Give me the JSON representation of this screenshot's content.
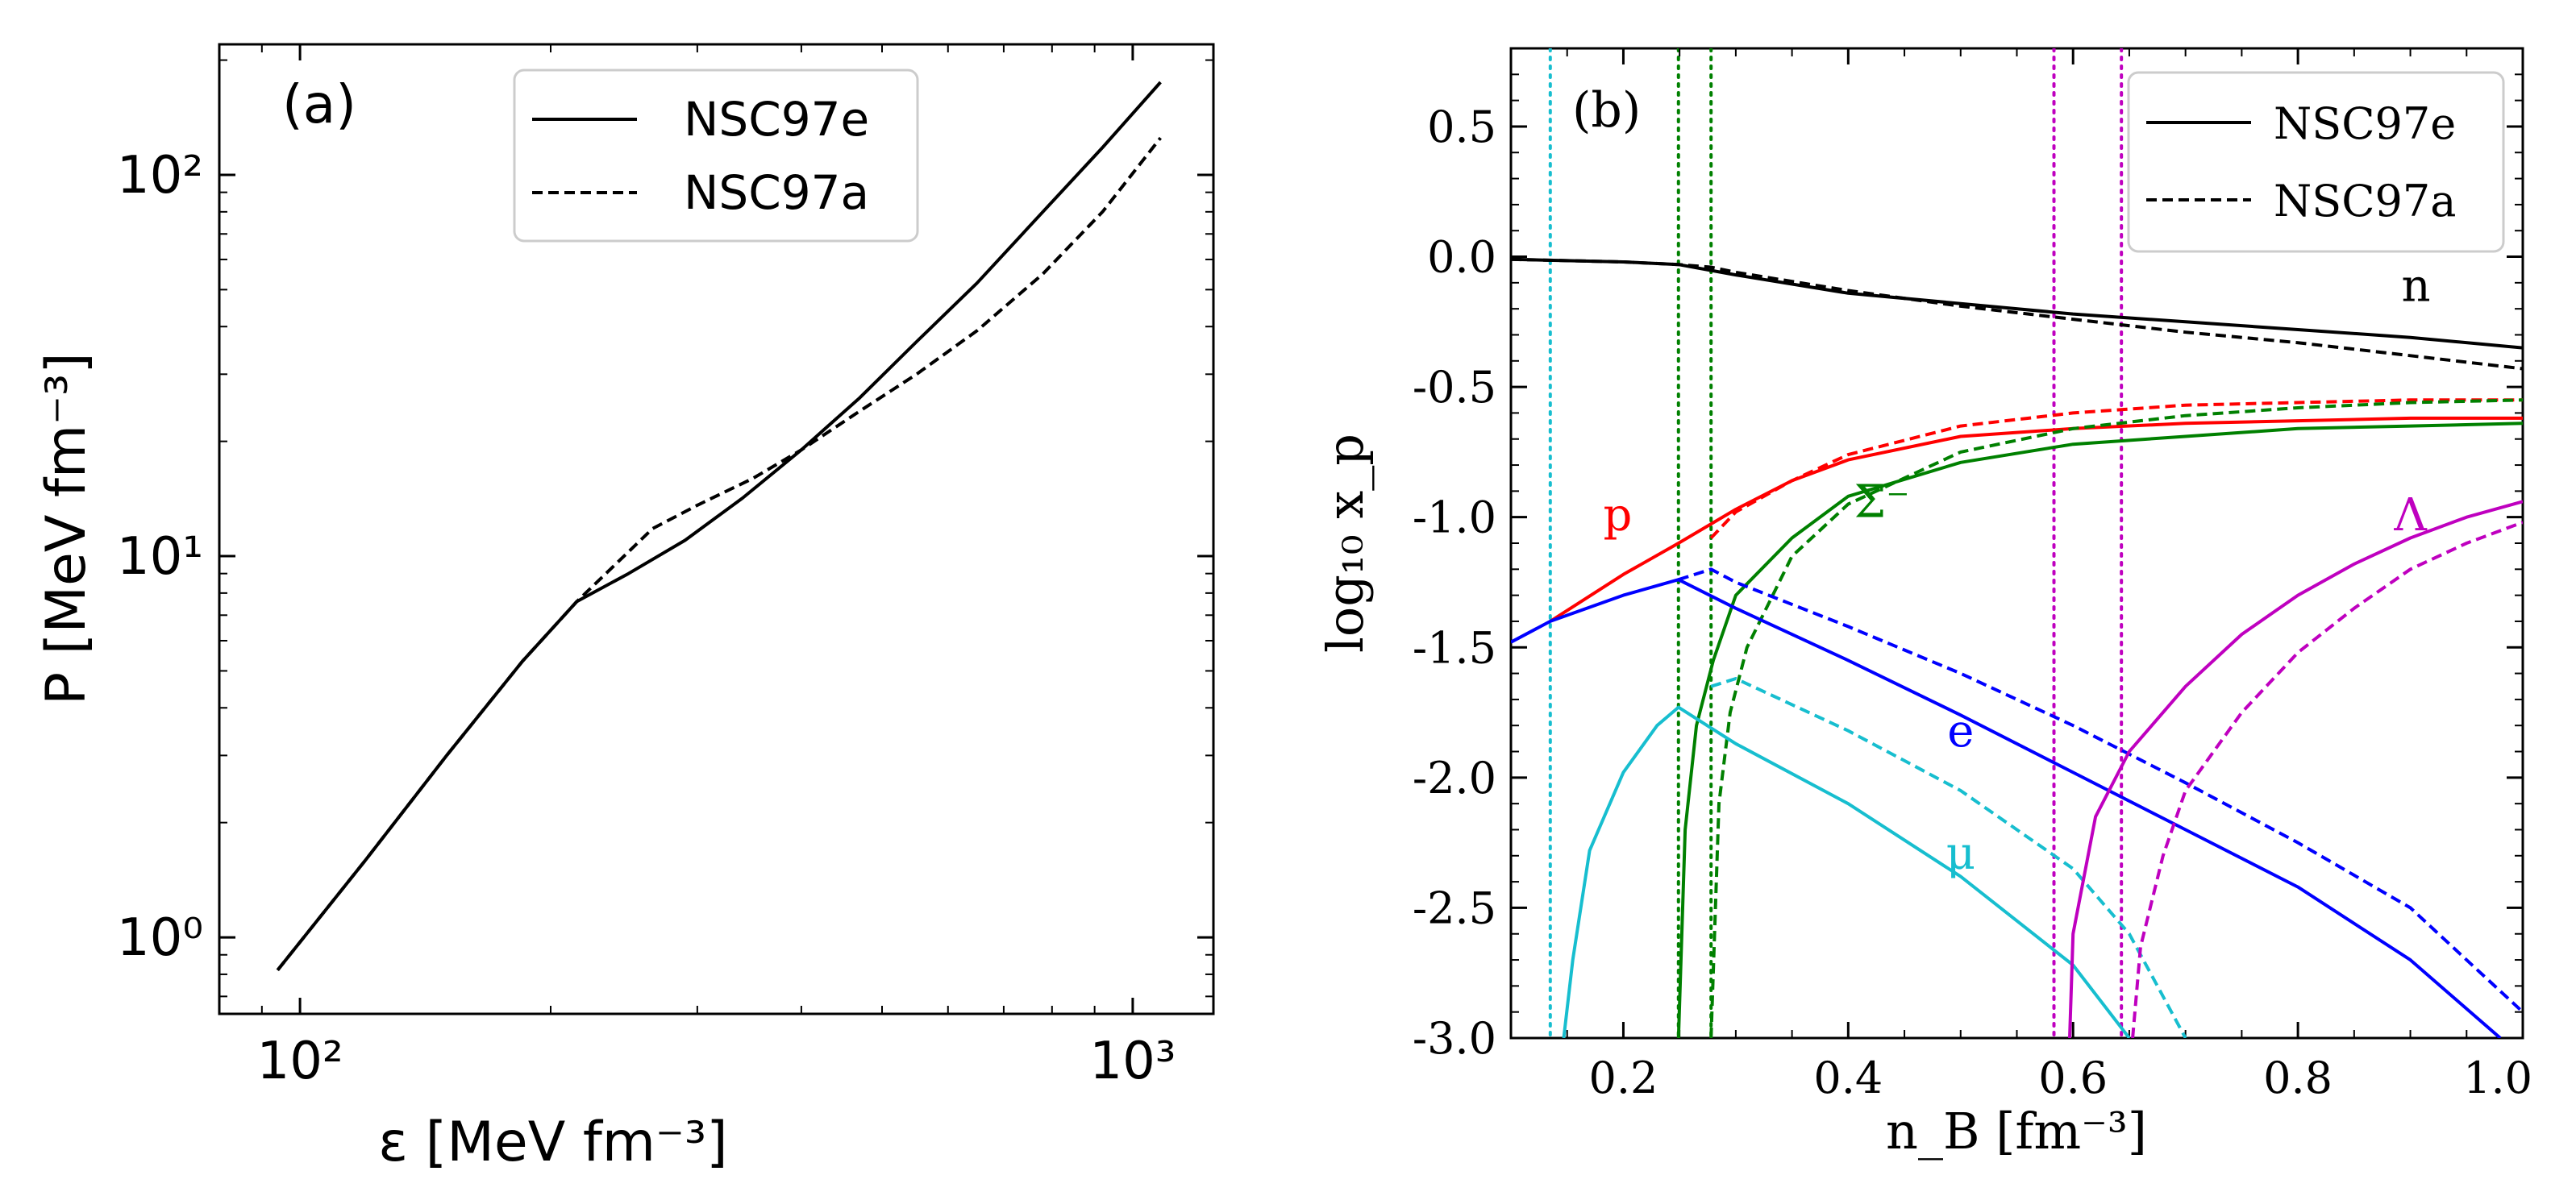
{
  "chart_data": [
    {
      "type": "line",
      "panel": "(a)",
      "xscale": "log",
      "yscale": "log",
      "xlabel": "ε [MeV fm⁻³]",
      "ylabel": "P [MeV fm⁻³]",
      "xlim": [
        80,
        1250
      ],
      "ylim": [
        0.63,
        220
      ],
      "xticks": [
        {
          "value": 100,
          "label": "10²"
        },
        {
          "value": 1000,
          "label": "10³"
        }
      ],
      "yticks": [
        {
          "value": 1,
          "label": "10⁰"
        },
        {
          "value": 10,
          "label": "10¹"
        },
        {
          "value": 100,
          "label": "10²"
        }
      ],
      "legend": {
        "position": "top-center",
        "entries": [
          "NSC97e",
          "NSC97a"
        ]
      },
      "series": [
        {
          "name": "NSC97e",
          "style": "solid",
          "color": "#000000",
          "x": [
            94,
            120,
            150,
            185,
            215,
            248,
            290,
            340,
            400,
            470,
            550,
            650,
            780,
            920,
            1080
          ],
          "y": [
            0.82,
            1.6,
            3.0,
            5.3,
            7.6,
            9.0,
            11.0,
            14.2,
            19.0,
            26.0,
            36.5,
            52.0,
            80.0,
            118.0,
            175.0
          ]
        },
        {
          "name": "NSC97a",
          "style": "dashed",
          "color": "#000000",
          "x": [
            94,
            120,
            150,
            185,
            215,
            245,
            265,
            300,
            350,
            400,
            470,
            550,
            650,
            780,
            920,
            1080
          ],
          "y": [
            0.82,
            1.6,
            3.0,
            5.3,
            7.6,
            10.0,
            11.8,
            13.6,
            16.0,
            19.0,
            24.0,
            30.0,
            39.0,
            55.0,
            80.0,
            125.0
          ]
        }
      ],
      "annotation": "(a)"
    },
    {
      "type": "line",
      "panel": "(b)",
      "xlabel": "n_B [fm⁻³]",
      "ylabel": "log₁₀ x_p",
      "xlim": [
        0.1,
        1.0
      ],
      "ylim": [
        -3.0,
        0.8
      ],
      "xticks": [
        {
          "value": 0.2,
          "label": "0.2"
        },
        {
          "value": 0.4,
          "label": "0.4"
        },
        {
          "value": 0.6,
          "label": "0.6"
        },
        {
          "value": 0.8,
          "label": "0.8"
        },
        {
          "value": 1.0,
          "label": "1.0"
        }
      ],
      "yticks": [
        {
          "value": 0.5,
          "label": "0.5"
        },
        {
          "value": 0.0,
          "label": "0.0"
        },
        {
          "value": -0.5,
          "label": "-0.5"
        },
        {
          "value": -1.0,
          "label": "-1.0"
        },
        {
          "value": -1.5,
          "label": "-1.5"
        },
        {
          "value": -2.0,
          "label": "-2.0"
        },
        {
          "value": -2.5,
          "label": "-2.5"
        },
        {
          "value": -3.0,
          "label": "-3.0"
        }
      ],
      "legend": {
        "position": "top-right",
        "entries": [
          "NSC97e",
          "NSC97a"
        ]
      },
      "annotation": "(b)",
      "vlines": [
        {
          "x": 0.135,
          "color": "#17becf"
        },
        {
          "x": 0.249,
          "color": "#008000"
        },
        {
          "x": 0.278,
          "color": "#008000"
        },
        {
          "x": 0.583,
          "color": "#bf00bf"
        },
        {
          "x": 0.643,
          "color": "#bf00bf"
        }
      ],
      "series": [
        {
          "name": "n NSC97e",
          "label": "n",
          "style": "solid",
          "color": "#000000",
          "x": [
            0.1,
            0.2,
            0.249,
            0.3,
            0.4,
            0.5,
            0.6,
            0.7,
            0.8,
            0.9,
            1.0
          ],
          "y": [
            -0.01,
            -0.02,
            -0.03,
            -0.07,
            -0.14,
            -0.18,
            -0.22,
            -0.25,
            -0.28,
            -0.31,
            -0.35
          ]
        },
        {
          "name": "n NSC97a",
          "label": "n",
          "style": "dashed",
          "color": "#000000",
          "x": [
            0.1,
            0.2,
            0.249,
            0.278,
            0.3,
            0.4,
            0.5,
            0.6,
            0.7,
            0.8,
            0.9,
            1.0
          ],
          "y": [
            -0.01,
            -0.02,
            -0.03,
            -0.04,
            -0.06,
            -0.13,
            -0.19,
            -0.24,
            -0.29,
            -0.33,
            -0.38,
            -0.43
          ]
        },
        {
          "name": "p NSC97e",
          "label": "p",
          "style": "solid",
          "color": "#ff0000",
          "x": [
            0.135,
            0.2,
            0.249,
            0.3,
            0.35,
            0.4,
            0.5,
            0.6,
            0.7,
            0.8,
            0.9,
            1.0
          ],
          "y": [
            -1.4,
            -1.22,
            -1.1,
            -0.97,
            -0.86,
            -0.78,
            -0.69,
            -0.66,
            -0.64,
            -0.63,
            -0.62,
            -0.62
          ]
        },
        {
          "name": "p NSC97a",
          "label": "p",
          "style": "dashed",
          "color": "#ff0000",
          "x": [
            0.278,
            0.3,
            0.35,
            0.4,
            0.5,
            0.6,
            0.7,
            0.8,
            0.9,
            1.0
          ],
          "y": [
            -1.08,
            -0.98,
            -0.86,
            -0.76,
            -0.65,
            -0.6,
            -0.57,
            -0.56,
            -0.55,
            -0.55
          ]
        },
        {
          "name": "Σ⁻ NSC97e",
          "label": "Σ⁻",
          "style": "solid",
          "color": "#008000",
          "x": [
            0.249,
            0.255,
            0.265,
            0.28,
            0.3,
            0.35,
            0.4,
            0.5,
            0.6,
            0.7,
            0.8,
            0.9,
            1.0
          ],
          "y": [
            -3.0,
            -2.2,
            -1.8,
            -1.55,
            -1.3,
            -1.08,
            -0.92,
            -0.79,
            -0.72,
            -0.69,
            -0.66,
            -0.65,
            -0.64
          ]
        },
        {
          "name": "Σ⁻ NSC97a",
          "label": "Σ⁻",
          "style": "dashed",
          "color": "#008000",
          "x": [
            0.278,
            0.285,
            0.295,
            0.31,
            0.35,
            0.4,
            0.5,
            0.6,
            0.7,
            0.8,
            0.9,
            1.0
          ],
          "y": [
            -3.0,
            -2.1,
            -1.75,
            -1.5,
            -1.15,
            -0.95,
            -0.75,
            -0.66,
            -0.61,
            -0.58,
            -0.56,
            -0.55
          ]
        },
        {
          "name": "e NSC97e",
          "label": "e",
          "style": "solid",
          "color": "#0000ff",
          "x": [
            0.1,
            0.135,
            0.2,
            0.249,
            0.3,
            0.4,
            0.5,
            0.6,
            0.7,
            0.8,
            0.9,
            0.98
          ],
          "y": [
            -1.48,
            -1.4,
            -1.3,
            -1.24,
            -1.35,
            -1.55,
            -1.76,
            -1.98,
            -2.2,
            -2.42,
            -2.7,
            -3.0
          ]
        },
        {
          "name": "e NSC97a",
          "label": "e",
          "style": "dashed",
          "color": "#0000ff",
          "x": [
            0.249,
            0.278,
            0.3,
            0.4,
            0.5,
            0.6,
            0.7,
            0.8,
            0.9,
            1.0
          ],
          "y": [
            -1.24,
            -1.2,
            -1.25,
            -1.42,
            -1.6,
            -1.8,
            -2.02,
            -2.25,
            -2.5,
            -2.9
          ]
        },
        {
          "name": "μ NSC97e",
          "label": "μ",
          "style": "solid",
          "color": "#17becf",
          "x": [
            0.147,
            0.155,
            0.17,
            0.2,
            0.23,
            0.249,
            0.3,
            0.4,
            0.5,
            0.6,
            0.65
          ],
          "y": [
            -3.0,
            -2.7,
            -2.28,
            -1.98,
            -1.8,
            -1.73,
            -1.87,
            -2.1,
            -2.38,
            -2.72,
            -3.0
          ]
        },
        {
          "name": "μ NSC97a",
          "label": "μ",
          "style": "dashed",
          "color": "#17becf",
          "x": [
            0.278,
            0.3,
            0.4,
            0.5,
            0.6,
            0.65,
            0.7
          ],
          "y": [
            -1.65,
            -1.62,
            -1.82,
            -2.05,
            -2.35,
            -2.6,
            -3.0
          ]
        },
        {
          "name": "Λ NSC97e",
          "label": "Λ",
          "style": "solid",
          "color": "#bf00bf",
          "x": [
            0.597,
            0.6,
            0.62,
            0.65,
            0.7,
            0.75,
            0.8,
            0.85,
            0.9,
            0.95,
            1.0
          ],
          "y": [
            -3.0,
            -2.6,
            -2.15,
            -1.9,
            -1.65,
            -1.45,
            -1.3,
            -1.18,
            -1.08,
            -1.0,
            -0.94
          ]
        },
        {
          "name": "Λ NSC97a",
          "label": "Λ",
          "style": "dashed",
          "color": "#bf00bf",
          "x": [
            0.653,
            0.66,
            0.68,
            0.7,
            0.75,
            0.8,
            0.85,
            0.9,
            0.95,
            1.0
          ],
          "y": [
            -3.0,
            -2.65,
            -2.3,
            -2.05,
            -1.75,
            -1.52,
            -1.35,
            -1.2,
            -1.1,
            -1.02
          ]
        }
      ],
      "species_labels": [
        {
          "text": "n",
          "x": 0.905,
          "y": -0.17,
          "color": "#000000"
        },
        {
          "text": "p",
          "x": 0.195,
          "y": -1.05,
          "color": "#ff0000"
        },
        {
          "text": "Σ⁻",
          "x": 0.43,
          "y": -1.0,
          "color": "#008000"
        },
        {
          "text": "e",
          "x": 0.5,
          "y": -1.88,
          "color": "#0000ff"
        },
        {
          "text": "μ",
          "x": 0.5,
          "y": -2.35,
          "color": "#17becf"
        },
        {
          "text": "Λ",
          "x": 0.9,
          "y": -1.05,
          "color": "#bf00bf"
        }
      ]
    }
  ]
}
